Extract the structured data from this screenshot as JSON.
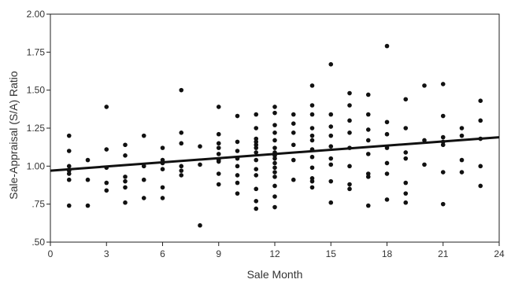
{
  "chart_data": {
    "type": "scatter",
    "title": "",
    "xlabel": "Sale Month",
    "ylabel": "Sale-Appraisal (S/A) Ratio",
    "xlim": [
      0,
      24
    ],
    "ylim": [
      0.5,
      2.0
    ],
    "x_ticks": [
      0,
      3,
      6,
      9,
      12,
      15,
      18,
      21,
      24
    ],
    "y_ticks": [
      0.5,
      0.75,
      1.0,
      1.25,
      1.5,
      1.75,
      2.0
    ],
    "x_tick_labels": [
      "0",
      "3",
      "6",
      "9",
      "12",
      "15",
      "18",
      "21",
      "24"
    ],
    "y_tick_labels": [
      ".50",
      ".75",
      "1.00",
      "1.25",
      "1.50",
      "1.75",
      "2.00"
    ],
    "grid": false,
    "legend": "none",
    "point_color": "#111111",
    "line_color": "#111111",
    "trend_line": {
      "x": [
        0,
        24
      ],
      "y": [
        0.97,
        1.19
      ]
    },
    "points": [
      [
        1,
        1.2
      ],
      [
        1,
        1.1
      ],
      [
        1,
        1.0
      ],
      [
        1,
        0.97
      ],
      [
        1,
        0.95
      ],
      [
        1,
        0.91
      ],
      [
        1,
        0.74
      ],
      [
        2,
        1.04
      ],
      [
        2,
        0.91
      ],
      [
        2,
        0.74
      ],
      [
        3,
        1.39
      ],
      [
        3,
        1.11
      ],
      [
        3,
        0.99
      ],
      [
        3,
        0.89
      ],
      [
        3,
        0.84
      ],
      [
        4,
        1.14
      ],
      [
        4,
        1.07
      ],
      [
        4,
        0.93
      ],
      [
        4,
        0.9
      ],
      [
        4,
        0.86
      ],
      [
        4,
        0.76
      ],
      [
        5,
        1.2
      ],
      [
        5,
        1.0
      ],
      [
        5,
        0.91
      ],
      [
        5,
        0.79
      ],
      [
        6,
        1.12
      ],
      [
        6,
        1.04
      ],
      [
        6,
        1.02
      ],
      [
        6,
        0.98
      ],
      [
        6,
        0.86
      ],
      [
        6,
        0.79
      ],
      [
        7,
        1.5
      ],
      [
        7,
        1.22
      ],
      [
        7,
        1.15
      ],
      [
        7,
        1.0
      ],
      [
        7,
        0.97
      ],
      [
        7,
        0.94
      ],
      [
        8,
        1.13
      ],
      [
        8,
        1.01
      ],
      [
        8,
        0.61
      ],
      [
        9,
        1.39
      ],
      [
        9,
        1.21
      ],
      [
        9,
        1.15
      ],
      [
        9,
        1.12
      ],
      [
        9,
        1.08
      ],
      [
        9,
        1.04
      ],
      [
        9,
        1.03
      ],
      [
        9,
        0.95
      ],
      [
        9,
        0.88
      ],
      [
        10,
        1.33
      ],
      [
        10,
        1.16
      ],
      [
        10,
        1.1
      ],
      [
        10,
        1.05
      ],
      [
        10,
        1.0
      ],
      [
        10,
        0.94
      ],
      [
        10,
        0.89
      ],
      [
        10,
        0.82
      ],
      [
        11,
        1.34
      ],
      [
        11,
        1.25
      ],
      [
        11,
        1.18
      ],
      [
        11,
        1.16
      ],
      [
        11,
        1.14
      ],
      [
        11,
        1.12
      ],
      [
        11,
        1.09
      ],
      [
        11,
        1.04
      ],
      [
        11,
        0.98
      ],
      [
        11,
        0.94
      ],
      [
        11,
        0.85
      ],
      [
        11,
        0.77
      ],
      [
        11,
        0.72
      ],
      [
        12,
        1.39
      ],
      [
        12,
        1.35
      ],
      [
        12,
        1.27
      ],
      [
        12,
        1.22
      ],
      [
        12,
        1.17
      ],
      [
        12,
        1.12
      ],
      [
        12,
        1.09
      ],
      [
        12,
        1.07
      ],
      [
        12,
        1.05
      ],
      [
        12,
        1.02
      ],
      [
        12,
        0.99
      ],
      [
        12,
        0.96
      ],
      [
        12,
        0.93
      ],
      [
        12,
        0.87
      ],
      [
        12,
        0.8
      ],
      [
        12,
        0.73
      ],
      [
        13,
        1.34
      ],
      [
        13,
        1.28
      ],
      [
        13,
        1.22
      ],
      [
        13,
        1.14
      ],
      [
        13,
        1.04
      ],
      [
        13,
        0.91
      ],
      [
        14,
        1.53
      ],
      [
        14,
        1.4
      ],
      [
        14,
        1.34
      ],
      [
        14,
        1.25
      ],
      [
        14,
        1.2
      ],
      [
        14,
        1.17
      ],
      [
        14,
        1.11
      ],
      [
        14,
        1.06
      ],
      [
        14,
        0.99
      ],
      [
        14,
        0.92
      ],
      [
        14,
        0.9
      ],
      [
        14,
        0.86
      ],
      [
        15,
        1.67
      ],
      [
        15,
        1.34
      ],
      [
        15,
        1.26
      ],
      [
        15,
        1.2
      ],
      [
        15,
        1.13
      ],
      [
        15,
        1.05
      ],
      [
        15,
        1.01
      ],
      [
        15,
        0.9
      ],
      [
        15,
        0.76
      ],
      [
        16,
        1.48
      ],
      [
        16,
        1.4
      ],
      [
        16,
        1.3
      ],
      [
        16,
        1.22
      ],
      [
        16,
        1.12
      ],
      [
        16,
        1.0
      ],
      [
        16,
        0.88
      ],
      [
        16,
        0.85
      ],
      [
        17,
        1.47
      ],
      [
        17,
        1.34
      ],
      [
        17,
        1.24
      ],
      [
        17,
        1.17
      ],
      [
        17,
        1.08
      ],
      [
        17,
        0.95
      ],
      [
        17,
        0.93
      ],
      [
        17,
        0.74
      ],
      [
        18,
        1.79
      ],
      [
        18,
        1.29
      ],
      [
        18,
        1.21
      ],
      [
        18,
        1.12
      ],
      [
        18,
        1.02
      ],
      [
        18,
        0.95
      ],
      [
        18,
        0.78
      ],
      [
        19,
        1.44
      ],
      [
        19,
        1.25
      ],
      [
        19,
        1.09
      ],
      [
        19,
        1.05
      ],
      [
        19,
        0.89
      ],
      [
        19,
        0.82
      ],
      [
        19,
        0.76
      ],
      [
        20,
        1.53
      ],
      [
        20,
        1.17
      ],
      [
        20,
        1.01
      ],
      [
        21,
        1.54
      ],
      [
        21,
        1.33
      ],
      [
        21,
        1.19
      ],
      [
        21,
        1.16
      ],
      [
        21,
        1.14
      ],
      [
        21,
        0.96
      ],
      [
        21,
        0.75
      ],
      [
        22,
        1.25
      ],
      [
        22,
        1.2
      ],
      [
        22,
        1.04
      ],
      [
        22,
        0.96
      ],
      [
        23,
        1.43
      ],
      [
        23,
        1.3
      ],
      [
        23,
        1.18
      ],
      [
        23,
        1.0
      ],
      [
        23,
        0.87
      ]
    ]
  }
}
